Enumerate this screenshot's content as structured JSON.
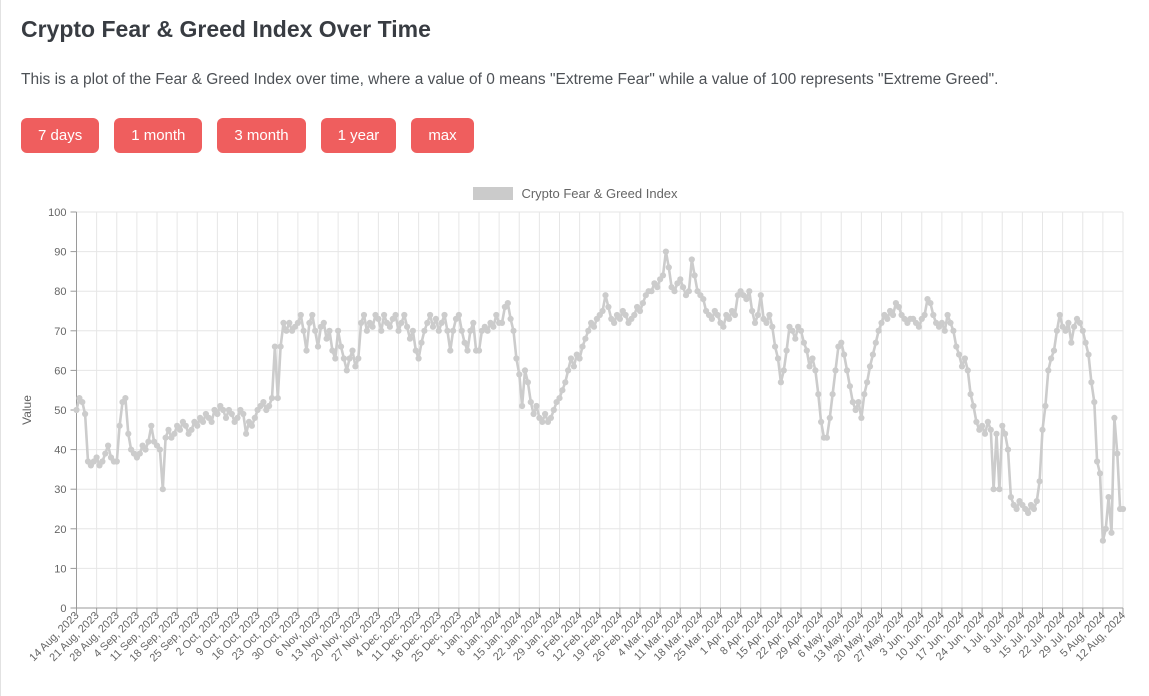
{
  "page": {
    "title": "Crypto Fear & Greed Index Over Time",
    "description": "This is a plot of the Fear & Greed Index over time, where a value of 0 means \"Extreme Fear\" while a value of 100 represents \"Extreme Greed\"."
  },
  "range_buttons": [
    "7 days",
    "1 month",
    "3 month",
    "1 year",
    "max"
  ],
  "colors": {
    "accent": "#ef5e5e",
    "button_text": "#ffffff",
    "series": "#cccccc",
    "grid": "#e6e6e6",
    "axis": "#9a9a9a",
    "tick_text": "#666666",
    "title_text": "#383c42",
    "body_text": "#4d5156"
  },
  "chart_data": {
    "type": "line",
    "title": "",
    "xlabel": "",
    "ylabel": "Value",
    "ylim": [
      0,
      100
    ],
    "grid": true,
    "legend": {
      "position": "top",
      "label": "Crypto Fear & Greed Index",
      "swatch_color": "#cbcbcb"
    },
    "y_ticks": [
      0,
      10,
      20,
      30,
      40,
      50,
      60,
      70,
      80,
      90,
      100
    ],
    "x_tick_every_days": 7,
    "x_tick_labels": [
      "14 Aug, 2023",
      "21 Aug, 2023",
      "28 Aug, 2023",
      "4 Sep, 2023",
      "11 Sep, 2023",
      "18 Sep, 2023",
      "25 Sep, 2023",
      "2 Oct, 2023",
      "9 Oct, 2023",
      "16 Oct, 2023",
      "23 Oct, 2023",
      "30 Oct, 2023",
      "6 Nov, 2023",
      "13 Nov, 2023",
      "20 Nov, 2023",
      "27 Nov, 2023",
      "4 Dec, 2023",
      "11 Dec, 2023",
      "18 Dec, 2023",
      "25 Dec, 2023",
      "1 Jan, 2024",
      "8 Jan, 2024",
      "15 Jan, 2024",
      "22 Jan, 2024",
      "29 Jan, 2024",
      "5 Feb, 2024",
      "12 Feb, 2024",
      "19 Feb, 2024",
      "26 Feb, 2024",
      "4 Mar, 2024",
      "11 Mar, 2024",
      "18 Mar, 2024",
      "25 Mar, 2024",
      "1 Apr, 2024",
      "8 Apr, 2024",
      "15 Apr, 2024",
      "22 Apr, 2024",
      "29 Apr, 2024",
      "6 May, 2024",
      "13 May, 2024",
      "20 May, 2024",
      "27 May, 2024",
      "3 Jun, 2024",
      "10 Jun, 2024",
      "17 Jun, 2024",
      "24 Jun, 2024",
      "1 Jul, 2024",
      "8 Jul, 2024",
      "15 Jul, 2024",
      "22 Jul, 2024",
      "29 Jul, 2024",
      "5 Aug, 2024",
      "12 Aug, 2024"
    ],
    "series": [
      {
        "name": "Crypto Fear & Greed Index",
        "color": "#cccccc",
        "point_style": "circle",
        "start_date": "14 Aug, 2023",
        "end_date": "12 Aug, 2024",
        "values": [
          50,
          53,
          52,
          49,
          37,
          36,
          37,
          38,
          36,
          37,
          39,
          41,
          38,
          37,
          37,
          46,
          52,
          53,
          44,
          40,
          39,
          38,
          39,
          41,
          40,
          42,
          46,
          42,
          41,
          40,
          30,
          43,
          45,
          43,
          44,
          46,
          45,
          47,
          46,
          44,
          45,
          47,
          46,
          48,
          47,
          49,
          48,
          47,
          50,
          49,
          51,
          50,
          48,
          50,
          49,
          47,
          48,
          50,
          49,
          44,
          47,
          46,
          48,
          50,
          51,
          52,
          50,
          51,
          53,
          66,
          53,
          66,
          72,
          70,
          72,
          70,
          71,
          72,
          74,
          70,
          65,
          72,
          74,
          70,
          66,
          71,
          72,
          68,
          70,
          65,
          63,
          70,
          66,
          63,
          60,
          63,
          65,
          61,
          63,
          72,
          74,
          70,
          72,
          71,
          74,
          73,
          70,
          74,
          72,
          71,
          73,
          74,
          70,
          72,
          74,
          71,
          68,
          70,
          65,
          63,
          67,
          70,
          72,
          74,
          71,
          73,
          70,
          72,
          74,
          70,
          65,
          70,
          73,
          74,
          70,
          67,
          65,
          70,
          72,
          65,
          65,
          70,
          71,
          70,
          72,
          71,
          74,
          72,
          72,
          76,
          77,
          73,
          70,
          63,
          59,
          51,
          60,
          57,
          52,
          49,
          51,
          48,
          47,
          49,
          47,
          48,
          50,
          52,
          53,
          55,
          57,
          60,
          63,
          61,
          64,
          63,
          66,
          68,
          70,
          72,
          71,
          73,
          74,
          75,
          79,
          76,
          73,
          72,
          74,
          73,
          75,
          74,
          72,
          73,
          74,
          76,
          75,
          77,
          79,
          80,
          80,
          82,
          81,
          83,
          84,
          90,
          86,
          81,
          80,
          82,
          83,
          81,
          79,
          80,
          88,
          84,
          80,
          79,
          78,
          75,
          74,
          73,
          75,
          74,
          72,
          71,
          74,
          73,
          75,
          74,
          79,
          80,
          79,
          78,
          80,
          75,
          72,
          74,
          79,
          73,
          72,
          74,
          71,
          66,
          63,
          57,
          60,
          65,
          71,
          70,
          68,
          71,
          70,
          67,
          65,
          61,
          63,
          60,
          54,
          47,
          43,
          43,
          48,
          54,
          60,
          66,
          67,
          64,
          60,
          56,
          52,
          50,
          52,
          48,
          54,
          57,
          61,
          64,
          67,
          70,
          72,
          74,
          73,
          75,
          74,
          77,
          76,
          74,
          73,
          72,
          73,
          73,
          72,
          71,
          73,
          74,
          78,
          77,
          74,
          72,
          71,
          72,
          70,
          74,
          72,
          70,
          66,
          64,
          61,
          63,
          60,
          54,
          51,
          47,
          45,
          46,
          44,
          47,
          45,
          30,
          44,
          30,
          46,
          44,
          40,
          28,
          26,
          25,
          27,
          26,
          25,
          24,
          26,
          25,
          27,
          32,
          45,
          51,
          60,
          63,
          65,
          70,
          74,
          71,
          70,
          72,
          67,
          71,
          73,
          72,
          70,
          67,
          64,
          57,
          52,
          37,
          34,
          17,
          20,
          28,
          19,
          48,
          39,
          25,
          25
        ]
      }
    ]
  }
}
